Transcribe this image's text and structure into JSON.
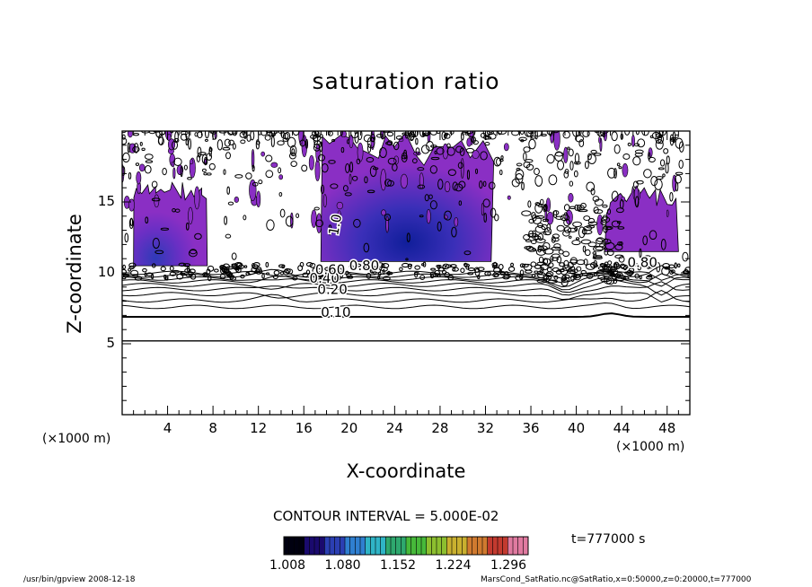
{
  "chart_data": {
    "type": "heatmap",
    "title": "saturation ratio",
    "xlabel": "X-coordinate",
    "ylabel": "Z-coordinate",
    "x_unit_left": "(×1000 m)",
    "x_unit_right": "(×1000 m)",
    "xlim": [
      0,
      50
    ],
    "ylim": [
      0,
      20
    ],
    "xticks": [
      4,
      8,
      12,
      16,
      20,
      24,
      28,
      32,
      36,
      40,
      44,
      48
    ],
    "yticks": [
      5,
      10,
      15
    ],
    "contour_interval": "CONTOUR INTERVAL = 5.000E-02",
    "contour_labels": [
      {
        "text": "0.10",
        "x": 17.5,
        "y": 6.9
      },
      {
        "text": "0.20",
        "x": 17.2,
        "y": 8.5
      },
      {
        "text": "0.40",
        "x": 16.5,
        "y": 9.3
      },
      {
        "text": "0.60",
        "x": 17.0,
        "y": 9.9
      },
      {
        "text": "0.80",
        "x": 20.0,
        "y": 10.2
      },
      {
        "text": "1.0",
        "x": 19.0,
        "y": 12.6
      },
      {
        "text": "0.80",
        "x": 44.5,
        "y": 10.4
      }
    ],
    "supersaturated_regions": [
      {
        "x": [
          1.0,
          7.5
        ],
        "z": [
          10.5,
          16.5
        ]
      },
      {
        "x": [
          17.5,
          32.5
        ],
        "z": [
          10.8,
          20.0
        ]
      },
      {
        "x": [
          42.5,
          49.0
        ],
        "z": [
          11.5,
          16.0
        ]
      }
    ],
    "colorbar": {
      "labels": [
        "1.008",
        "1.080",
        "1.152",
        "1.224",
        "1.296"
      ],
      "colors": [
        "#000010",
        "#1a0a6e",
        "#2b3fb3",
        "#2f7fd0",
        "#2fb4c6",
        "#2ea86e",
        "#46b93a",
        "#8cbf2f",
        "#c9b02f",
        "#d07a2f",
        "#c33a2f",
        "#e07aa0"
      ]
    }
  },
  "time_label": "t=777000 s",
  "footer_left": "/usr/bin/gpview   2008-12-18",
  "footer_right": "MarsCond_SatRatio.nc@SatRatio,x=0:50000,z=0:20000,t=777000",
  "colors": {
    "purple": "#8a2fc4",
    "deep_blue": "#1a2ea8",
    "contour": "#000000"
  }
}
